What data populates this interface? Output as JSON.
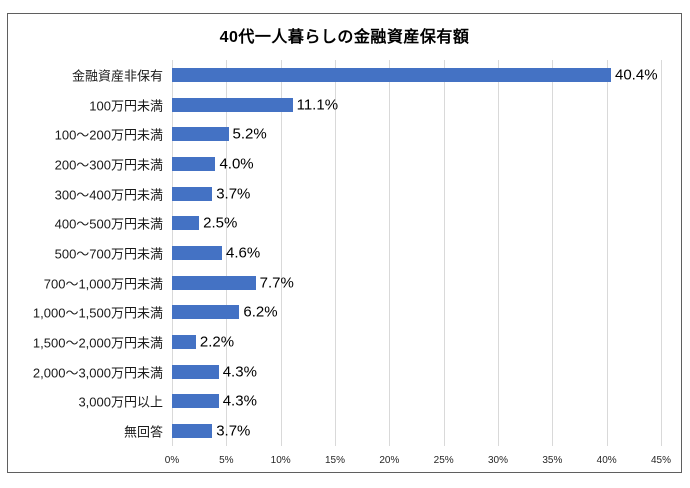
{
  "chart_data": {
    "type": "bar",
    "orientation": "horizontal",
    "title": "40代一人暮らしの金融資産保有額",
    "categories": [
      "金融資産非保有",
      "100万円未満",
      "100～200万円未満",
      "200～300万円未満",
      "300～400万円未満",
      "400～500万円未満",
      "500～700万円未満",
      "700～1,000万円未満",
      "1,000～1,500万円未満",
      "1,500～2,000万円未満",
      "2,000～3,000万円未満",
      "3,000万円以上",
      "無回答"
    ],
    "values": [
      40.4,
      11.1,
      5.2,
      4.0,
      3.7,
      2.5,
      4.6,
      7.7,
      6.2,
      2.2,
      4.3,
      4.3,
      3.7
    ],
    "value_labels": [
      "40.4%",
      "11.1%",
      "5.2%",
      "4.0%",
      "3.7%",
      "2.5%",
      "4.6%",
      "7.7%",
      "6.2%",
      "2.2%",
      "4.3%",
      "4.3%",
      "3.7%"
    ],
    "x_tick_labels": [
      "0%",
      "5%",
      "10%",
      "15%",
      "20%",
      "25%",
      "30%",
      "35%",
      "40%",
      "45%"
    ],
    "xlim": [
      0,
      45
    ],
    "grid": true,
    "legend": "none",
    "bar_color": "#4472C4",
    "gridline_color": "#D9D9D9",
    "border_color": "#5f5f5f"
  }
}
